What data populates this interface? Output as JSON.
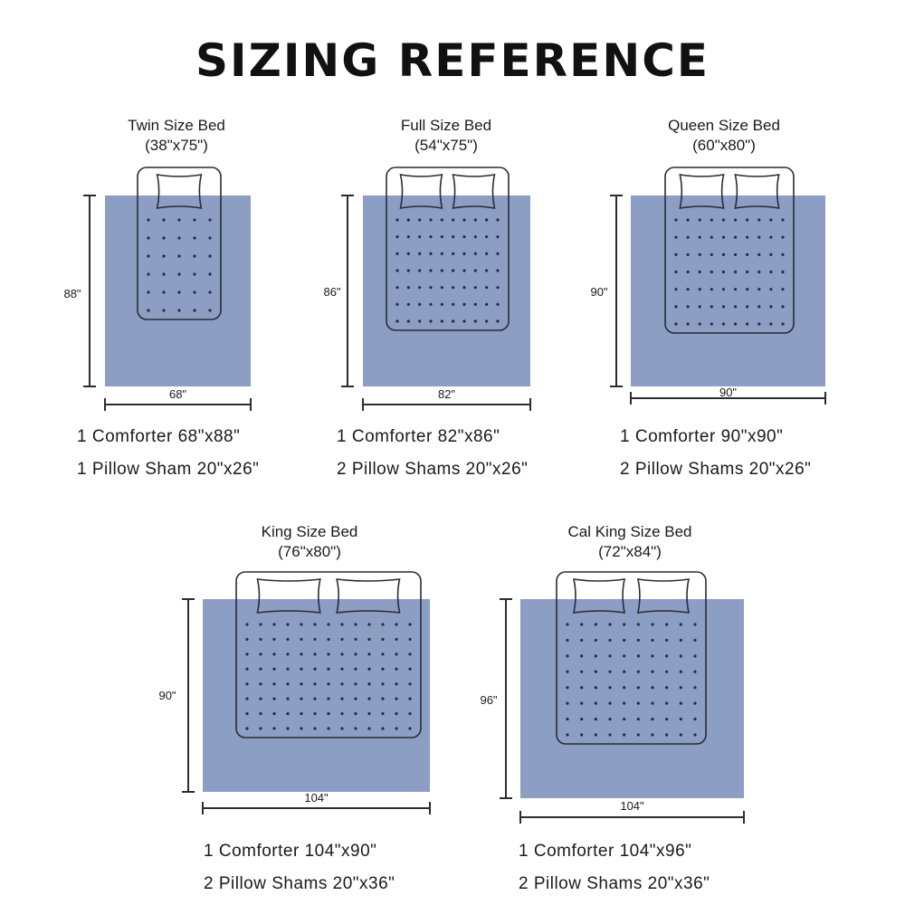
{
  "title": "SIZING REFERENCE",
  "colors": {
    "comforter": "#8c9ec4",
    "outline": "#2b2b36",
    "text": "#1a1a1a"
  },
  "beds": [
    {
      "name": "Twin Size Bed",
      "size": "(38\"x75\")",
      "height_label": "88\"",
      "width_label": "68\"",
      "pillows": 1,
      "comforter": "1 Comforter 68\"x88\"",
      "shams": "1 Pillow Sham 20\"x26\""
    },
    {
      "name": "Full Size Bed",
      "size": "(54\"x75\")",
      "height_label": "86\"",
      "width_label": "82\"",
      "pillows": 2,
      "comforter": "1 Comforter 82\"x86\"",
      "shams": "2 Pillow Shams 20\"x26\""
    },
    {
      "name": "Queen Size Bed",
      "size": "(60\"x80\")",
      "height_label": "90\"",
      "width_label": "90\"",
      "pillows": 2,
      "comforter": "1 Comforter 90\"x90\"",
      "shams": "2 Pillow Shams 20\"x26\""
    },
    {
      "name": "King Size Bed",
      "size": "(76\"x80\")",
      "height_label": "90\"",
      "width_label": "104\"",
      "pillows": 2,
      "comforter": "1 Comforter 104\"x90\"",
      "shams": "2 Pillow Shams 20\"x36\""
    },
    {
      "name": "Cal King Size Bed",
      "size": "(72\"x84\")",
      "height_label": "96\"",
      "width_label": "104\"",
      "pillows": 2,
      "comforter": "1 Comforter 104\"x96\"",
      "shams": "2 Pillow Shams 20\"x36\""
    }
  ]
}
